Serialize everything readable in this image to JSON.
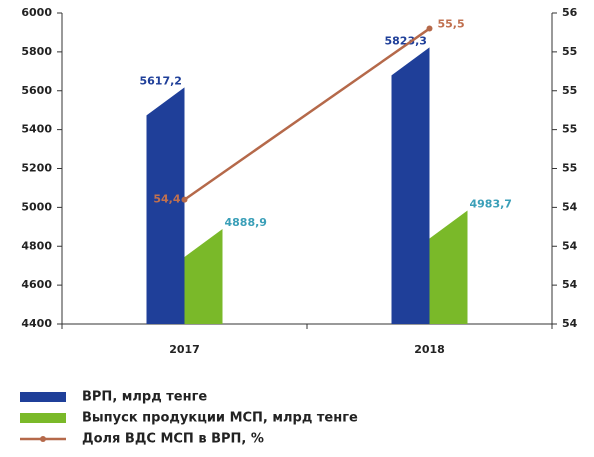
{
  "chart_data": {
    "type": "bar",
    "categories": [
      "2017",
      "2018"
    ],
    "series": [
      {
        "name": "ВРП, млрд тенге",
        "color": "#1f3f99",
        "values": [
          5617.2,
          5823.3
        ],
        "value_labels": [
          "5617,2",
          "5823,3"
        ],
        "label_color": "#1f3f99"
      },
      {
        "name": "Выпуск продукции МСП, млрд тенге",
        "color": "#7ab929",
        "values": [
          4888.9,
          4983.7
        ],
        "value_labels": [
          "4888,9",
          "4983,7"
        ],
        "label_color": "#3a9fb8"
      },
      {
        "name": "Доля ВДС МСП в ВРП, %",
        "type": "line",
        "axis": "y2",
        "color": "#b5694a",
        "values": [
          54.4,
          55.5
        ],
        "value_labels": [
          "54,4",
          "55,5"
        ],
        "label_color": "#c0704f"
      }
    ],
    "ylim": [
      4400,
      6000
    ],
    "yticks": [
      4400,
      4600,
      4800,
      5000,
      5200,
      5400,
      5600,
      5800,
      6000
    ],
    "y2lim": [
      53.6,
      55.6
    ],
    "y2ticks": [
      {
        "value": 53.6,
        "label": "54"
      },
      {
        "value": 53.85,
        "label": "54"
      },
      {
        "value": 54.1,
        "label": "54"
      },
      {
        "value": 54.35,
        "label": "54"
      },
      {
        "value": 54.6,
        "label": "55"
      },
      {
        "value": 54.85,
        "label": "55"
      },
      {
        "value": 55.1,
        "label": "55"
      },
      {
        "value": 55.35,
        "label": "55"
      },
      {
        "value": 55.6,
        "label": "56"
      }
    ]
  }
}
